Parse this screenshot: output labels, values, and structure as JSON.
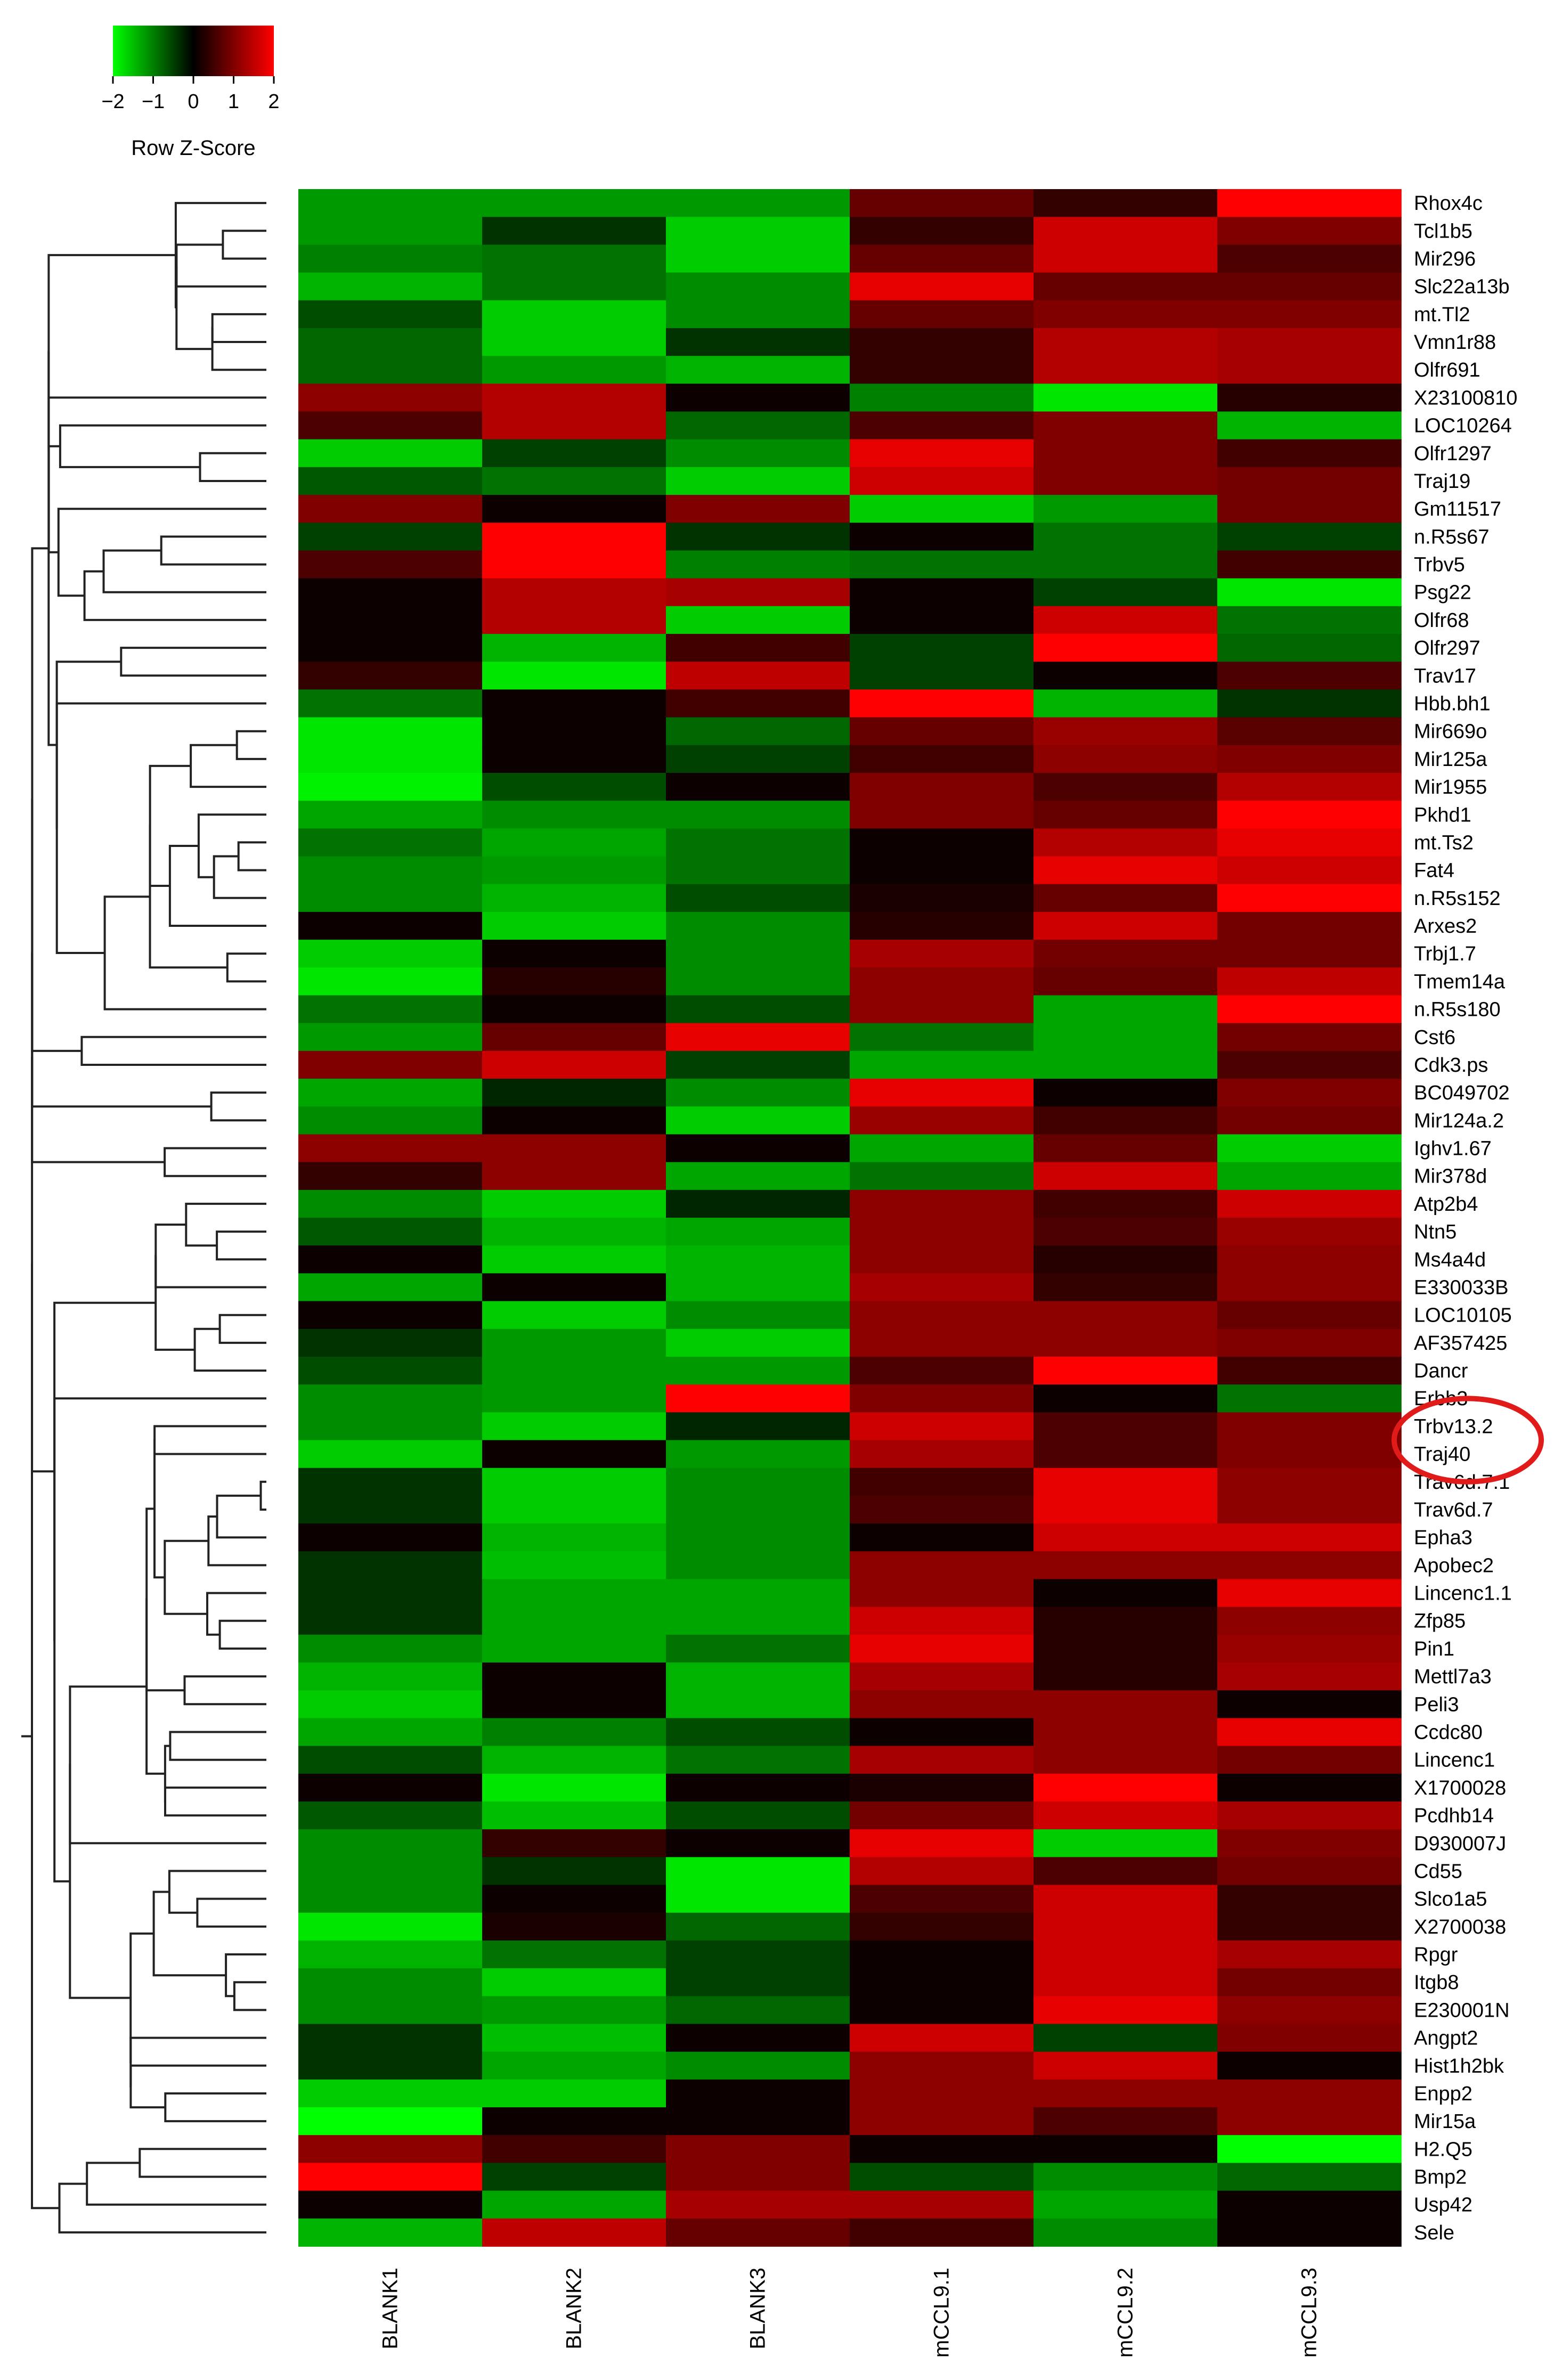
{
  "chart_data": {
    "type": "heatmap",
    "title": "",
    "xlabel": "",
    "ylabel": "",
    "color_key": {
      "label": "Row Z-Score",
      "ticks": [
        -2,
        -1,
        0,
        1,
        2
      ],
      "tick_labels": [
        "−2",
        "−1",
        "0",
        "1",
        "2"
      ],
      "low_color": "#00ff00",
      "mid_color": "#000000",
      "high_color": "#ff0000"
    },
    "columns": [
      "BLANK1",
      "BLANK2",
      "BLANK3",
      "mCCL9.1",
      "mCCL9.2",
      "mCCL9.3"
    ],
    "rows": [
      "Rhox4c",
      "Tcl1b5",
      "Mir296",
      "Slc22a13b",
      "mt.Tl2",
      "Vmn1r88",
      "Olfr691",
      "X23100810",
      "LOC10264",
      "Olfr1297",
      "Traj19",
      "Gm11517",
      "n.R5s67",
      "Trbv5",
      "Psg22",
      "Olfr68",
      "Olfr297",
      "Trav17",
      "Hbb.bh1",
      "Mir669o",
      "Mir125a",
      "Mir1955",
      "Pkhd1",
      "mt.Ts2",
      "Fat4",
      "n.R5s152",
      "Arxes2",
      "Trbj1.7",
      "Tmem14a",
      "n.R5s180",
      "Cst6",
      "Cdk3.ps",
      "BC049702",
      "Mir124a.2",
      "Ighv1.67",
      "Mir378d",
      "Atp2b4",
      "Ntn5",
      "Ms4a4d",
      "E330033B",
      "LOC10105",
      "AF357425",
      "Dancr",
      "Erbb3",
      "Trbv13.2",
      "Traj40",
      "Trav6d.7.1",
      "Trav6d.7",
      "Epha3",
      "Apobec2",
      "Lincenc1.1",
      "Zfp85",
      "Pin1",
      "Mettl7a3",
      "Peli3",
      "Ccdc80",
      "Lincenc1",
      "X1700028",
      "Pcdhb14",
      "D930007J",
      "Cd55",
      "Slco1a5",
      "X2700038",
      "Rpgr",
      "Itgb8",
      "E230001N",
      "Angpt2",
      "Hist1h2bk",
      "Enpp2",
      "Mir15a",
      "H2.Q5",
      "Bmp2",
      "Usp42",
      "Sele"
    ],
    "highlighted_rows": [
      "Trbv13.2",
      "Traj40"
    ],
    "z_scores": [
      [
        -1.2,
        -1.2,
        -1.2,
        0.8,
        0.4,
        2.0
      ],
      [
        -1.2,
        -0.4,
        -1.6,
        0.4,
        1.6,
        1.0
      ],
      [
        -1.0,
        -0.9,
        -1.6,
        0.8,
        1.6,
        0.6
      ],
      [
        -1.4,
        -0.9,
        -1.1,
        1.8,
        0.8,
        0.8
      ],
      [
        -0.6,
        -1.6,
        -1.1,
        0.8,
        1.0,
        1.0
      ],
      [
        -0.8,
        -1.6,
        -0.4,
        0.4,
        1.4,
        1.3
      ],
      [
        -0.8,
        -1.2,
        -1.4,
        0.4,
        1.4,
        1.3
      ],
      [
        1.1,
        1.4,
        0.1,
        -1.0,
        -1.8,
        0.3
      ],
      [
        0.6,
        1.4,
        -0.8,
        0.6,
        1.0,
        -1.4
      ],
      [
        -1.6,
        -0.5,
        -1.1,
        1.8,
        1.0,
        0.5
      ],
      [
        -0.7,
        -0.9,
        -1.6,
        1.6,
        1.0,
        0.9
      ],
      [
        1.0,
        0.1,
        1.0,
        -1.6,
        -1.2,
        0.9
      ],
      [
        -0.5,
        2.0,
        -0.4,
        0.1,
        -0.9,
        -0.5
      ],
      [
        0.6,
        2.0,
        -1.0,
        -0.9,
        -0.9,
        0.5
      ],
      [
        0.1,
        1.4,
        1.3,
        0.1,
        -0.5,
        -1.8
      ],
      [
        0.1,
        1.4,
        -1.6,
        0.1,
        1.6,
        -0.9
      ],
      [
        0.1,
        -1.4,
        0.5,
        -0.5,
        2.0,
        -0.8
      ],
      [
        0.4,
        -1.8,
        1.5,
        -0.5,
        0.1,
        0.6
      ],
      [
        -0.9,
        0.1,
        0.5,
        2.0,
        -1.4,
        -0.4
      ],
      [
        -1.8,
        0.1,
        -0.8,
        0.8,
        1.2,
        0.7
      ],
      [
        -1.8,
        0.1,
        -0.5,
        0.5,
        1.1,
        1.0
      ],
      [
        -1.9,
        -0.6,
        0.1,
        1.0,
        0.6,
        1.4
      ],
      [
        -1.3,
        -1.1,
        -1.1,
        1.0,
        0.8,
        2.0
      ],
      [
        -0.9,
        -1.3,
        -0.9,
        0.1,
        1.4,
        1.8
      ],
      [
        -1.1,
        -1.2,
        -0.9,
        0.1,
        1.8,
        1.6
      ],
      [
        -1.1,
        -1.4,
        -0.6,
        0.2,
        0.8,
        2.0
      ],
      [
        0.1,
        -1.6,
        -1.1,
        0.3,
        1.6,
        0.9
      ],
      [
        -1.6,
        0.1,
        -1.1,
        1.3,
        0.9,
        0.9
      ],
      [
        -1.8,
        0.3,
        -1.1,
        1.1,
        0.8,
        1.5
      ],
      [
        -0.9,
        0.1,
        -0.6,
        1.1,
        -1.3,
        2.0
      ],
      [
        -1.2,
        0.8,
        1.8,
        -0.9,
        -1.3,
        0.9
      ],
      [
        1.0,
        1.6,
        -0.5,
        -1.3,
        -1.3,
        0.6
      ],
      [
        -1.3,
        -0.3,
        -1.1,
        1.8,
        0.1,
        1.0
      ],
      [
        -1.1,
        0.1,
        -1.6,
        1.2,
        0.5,
        0.9
      ],
      [
        1.1,
        1.1,
        0.1,
        -1.3,
        0.8,
        -1.6
      ],
      [
        0.4,
        1.1,
        -1.3,
        -0.9,
        1.6,
        -1.3
      ],
      [
        -1.1,
        -1.6,
        -0.3,
        1.1,
        0.5,
        1.6
      ],
      [
        -0.7,
        -1.4,
        -1.3,
        1.1,
        0.6,
        1.2
      ],
      [
        0.1,
        -1.6,
        -1.4,
        1.1,
        0.3,
        1.1
      ],
      [
        -1.3,
        0.1,
        -1.4,
        1.3,
        0.4,
        1.1
      ],
      [
        0.1,
        -1.6,
        -1.1,
        1.1,
        1.1,
        0.8
      ],
      [
        -0.4,
        -1.2,
        -1.6,
        1.1,
        1.1,
        1.0
      ],
      [
        -0.6,
        -1.2,
        -1.2,
        0.6,
        2.0,
        0.5
      ],
      [
        -1.1,
        -1.2,
        2.0,
        1.0,
        0.1,
        -0.9
      ],
      [
        -1.1,
        -1.6,
        -0.3,
        1.6,
        0.6,
        1.0
      ],
      [
        -1.6,
        0.1,
        -1.2,
        1.3,
        0.6,
        1.0
      ],
      [
        -0.4,
        -1.6,
        -1.1,
        0.5,
        1.8,
        1.1
      ],
      [
        -0.4,
        -1.6,
        -1.1,
        0.6,
        1.8,
        1.1
      ],
      [
        0.1,
        -1.4,
        -1.1,
        0.1,
        1.6,
        1.6
      ],
      [
        -0.4,
        -1.5,
        -1.1,
        1.1,
        1.1,
        1.1
      ],
      [
        -0.4,
        -1.3,
        -1.3,
        1.1,
        0.1,
        1.8
      ],
      [
        -0.4,
        -1.3,
        -1.3,
        1.6,
        0.3,
        1.1
      ],
      [
        -1.1,
        -1.3,
        -0.9,
        1.8,
        0.3,
        1.2
      ],
      [
        -1.4,
        0.1,
        -1.4,
        1.3,
        0.3,
        1.3
      ],
      [
        -1.6,
        0.1,
        -1.4,
        1.1,
        1.1,
        0.1
      ],
      [
        -1.3,
        -1.0,
        -0.6,
        0.1,
        1.1,
        1.8
      ],
      [
        -0.6,
        -1.4,
        -0.9,
        1.3,
        1.1,
        0.9
      ],
      [
        0.1,
        -1.8,
        0.1,
        0.2,
        2.0,
        0.1
      ],
      [
        -0.7,
        -1.5,
        -0.6,
        0.9,
        1.6,
        1.3
      ],
      [
        -1.1,
        0.4,
        0.1,
        1.8,
        -1.6,
        1.0
      ],
      [
        -1.1,
        -0.4,
        -1.8,
        1.4,
        0.6,
        0.9
      ],
      [
        -1.1,
        0.1,
        -1.8,
        0.6,
        1.6,
        0.4
      ],
      [
        -1.8,
        0.2,
        -0.8,
        0.4,
        1.6,
        0.4
      ],
      [
        -1.4,
        -0.9,
        -0.5,
        0.1,
        1.6,
        1.3
      ],
      [
        -1.1,
        -1.6,
        -0.5,
        0.1,
        1.6,
        0.9
      ],
      [
        -1.1,
        -1.2,
        -0.8,
        0.1,
        1.8,
        1.1
      ],
      [
        -0.4,
        -1.5,
        0.1,
        1.6,
        -0.5,
        1.0
      ],
      [
        -0.4,
        -1.3,
        -1.1,
        1.1,
        1.6,
        0.1
      ],
      [
        -1.6,
        -1.6,
        0.1,
        1.1,
        1.1,
        1.1
      ],
      [
        -2.0,
        0.1,
        0.1,
        1.1,
        0.6,
        1.1
      ],
      [
        1.1,
        0.5,
        1.0,
        0.1,
        0.1,
        -2.0
      ],
      [
        2.0,
        -0.5,
        1.0,
        -0.6,
        -1.1,
        -0.8
      ],
      [
        0.1,
        -1.3,
        1.3,
        1.3,
        -1.3,
        0.1
      ],
      [
        -1.4,
        1.5,
        0.8,
        0.5,
        -1.1,
        0.1
      ]
    ]
  }
}
